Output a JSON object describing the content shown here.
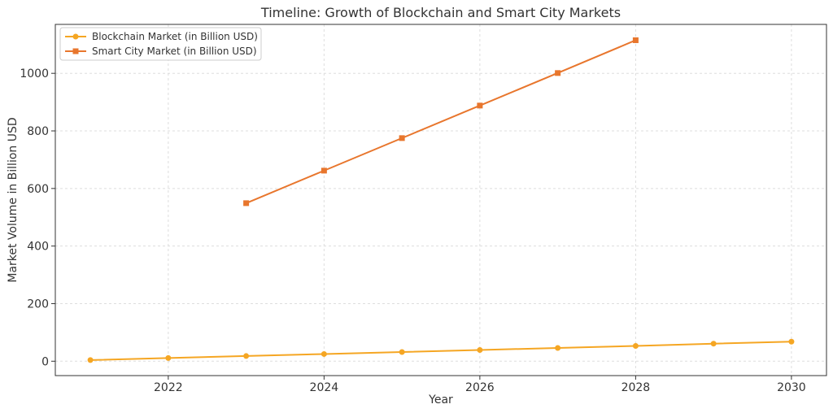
{
  "chart_data": {
    "type": "line",
    "title": "Timeline: Growth of Blockchain and Smart City Markets",
    "xlabel": "Year",
    "ylabel": "Market Volume in Billion USD",
    "xlim": [
      2020.55,
      2030.45
    ],
    "ylim": [
      -50,
      1170
    ],
    "xticks": [
      2022,
      2024,
      2026,
      2028,
      2030
    ],
    "yticks": [
      0,
      200,
      400,
      600,
      800,
      1000
    ],
    "grid": true,
    "legend_position": "top-left",
    "series": [
      {
        "name": "Blockchain Market (in Billion USD)",
        "color": "#f5a623",
        "marker": "circle",
        "x": [
          2021,
          2022,
          2023,
          2024,
          2025,
          2026,
          2027,
          2028,
          2029,
          2030
        ],
        "y": [
          4,
          11,
          18,
          25,
          32,
          39,
          46,
          53,
          61,
          68
        ]
      },
      {
        "name": "Smart City Market (in Billion USD)",
        "color": "#e8762d",
        "marker": "square",
        "x": [
          2023,
          2024,
          2025,
          2026,
          2027,
          2028
        ],
        "y": [
          549,
          662,
          775,
          888,
          1001,
          1115
        ]
      }
    ]
  }
}
